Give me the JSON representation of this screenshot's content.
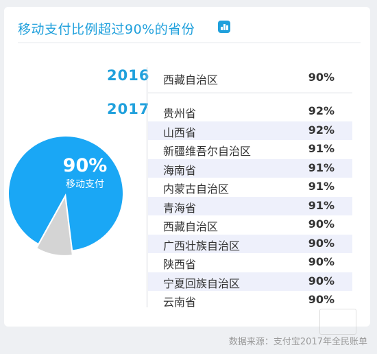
{
  "title": "移动支付比例超过90%的省份",
  "icon": "bar-chart-icon",
  "colors": {
    "accent": "#1fa0dc",
    "pie_main": "#1aa7f5",
    "pie_rest": "#d4d4d4",
    "row_shade": "#eef0fb"
  },
  "pie": {
    "percent_label": "90%",
    "caption": "移动支付",
    "share": 0.9
  },
  "chart_data": {
    "type": "table",
    "groups": [
      {
        "year": "2016",
        "rows": [
          {
            "region": "西藏自治区",
            "value": "90%"
          }
        ]
      },
      {
        "year": "2017",
        "rows": [
          {
            "region": "贵州省",
            "value": "92%"
          },
          {
            "region": "山西省",
            "value": "92%"
          },
          {
            "region": "新疆维吾尔自治区",
            "value": "91%"
          },
          {
            "region": "海南省",
            "value": "91%"
          },
          {
            "region": "内蒙古自治区",
            "value": "91%"
          },
          {
            "region": "青海省",
            "value": "91%"
          },
          {
            "region": "西藏自治区",
            "value": "90%"
          },
          {
            "region": "广西壮族自治区",
            "value": "90%"
          },
          {
            "region": "陕西省",
            "value": "90%"
          },
          {
            "region": "宁夏回族自治区",
            "value": "90%"
          },
          {
            "region": "云南省",
            "value": "90%"
          }
        ]
      }
    ]
  },
  "source": "数据来源：支付宝2017年全民账单"
}
